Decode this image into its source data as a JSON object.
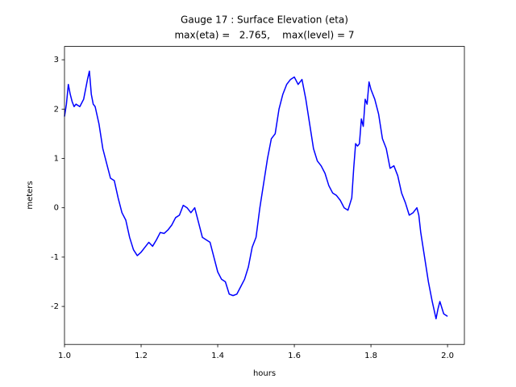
{
  "chart_data": {
    "type": "line",
    "title": "Gauge 17 : Surface Elevation (eta)",
    "subtitle": "max(eta) =   2.765,    max(level) = 7",
    "x_label": "hours",
    "y_label": "meters",
    "xlim": [
      1.0,
      2.044
    ],
    "ylim": [
      -2.77,
      3.27
    ],
    "xticks": [
      {
        "value": 1.0,
        "label": "1.0"
      },
      1.2,
      1.4,
      1.6,
      1.8,
      {
        "value": 2.0,
        "label": "2.0"
      }
    ],
    "yticks": [
      -2,
      -1,
      0,
      1,
      2,
      3
    ],
    "x": [
      1.0,
      1.005,
      1.01,
      1.015,
      1.02,
      1.025,
      1.03,
      1.04,
      1.05,
      1.06,
      1.065,
      1.07,
      1.075,
      1.08,
      1.09,
      1.1,
      1.11,
      1.12,
      1.13,
      1.14,
      1.15,
      1.16,
      1.17,
      1.18,
      1.19,
      1.2,
      1.21,
      1.22,
      1.23,
      1.24,
      1.25,
      1.26,
      1.27,
      1.28,
      1.29,
      1.3,
      1.31,
      1.32,
      1.33,
      1.34,
      1.35,
      1.36,
      1.37,
      1.38,
      1.39,
      1.4,
      1.41,
      1.42,
      1.43,
      1.44,
      1.45,
      1.46,
      1.47,
      1.48,
      1.49,
      1.5,
      1.51,
      1.52,
      1.53,
      1.54,
      1.55,
      1.56,
      1.57,
      1.58,
      1.59,
      1.6,
      1.61,
      1.62,
      1.63,
      1.64,
      1.65,
      1.66,
      1.67,
      1.68,
      1.69,
      1.7,
      1.71,
      1.72,
      1.73,
      1.74,
      1.75,
      1.755,
      1.76,
      1.765,
      1.77,
      1.775,
      1.78,
      1.785,
      1.79,
      1.795,
      1.8,
      1.81,
      1.82,
      1.83,
      1.84,
      1.85,
      1.86,
      1.87,
      1.88,
      1.89,
      1.9,
      1.91,
      1.92,
      1.925,
      1.93,
      1.94,
      1.95,
      1.96,
      1.97,
      1.975,
      1.98,
      1.99,
      2.0
    ],
    "series": [
      {
        "color": "#0000ff",
        "values": [
          1.85,
          2.1,
          2.5,
          2.3,
          2.15,
          2.05,
          2.1,
          2.05,
          2.2,
          2.6,
          2.77,
          2.3,
          2.1,
          2.05,
          1.7,
          1.2,
          0.9,
          0.6,
          0.55,
          0.2,
          -0.1,
          -0.25,
          -0.6,
          -0.85,
          -0.97,
          -0.9,
          -0.8,
          -0.7,
          -0.78,
          -0.65,
          -0.5,
          -0.52,
          -0.45,
          -0.35,
          -0.2,
          -0.15,
          0.05,
          0.0,
          -0.1,
          0.0,
          -0.3,
          -0.6,
          -0.65,
          -0.7,
          -1.0,
          -1.3,
          -1.45,
          -1.5,
          -1.75,
          -1.78,
          -1.75,
          -1.6,
          -1.45,
          -1.2,
          -0.8,
          -0.6,
          0.0,
          0.5,
          1.0,
          1.4,
          1.5,
          2.0,
          2.3,
          2.5,
          2.6,
          2.65,
          2.5,
          2.6,
          2.2,
          1.7,
          1.2,
          0.95,
          0.85,
          0.7,
          0.45,
          0.3,
          0.25,
          0.15,
          0.0,
          -0.05,
          0.2,
          0.8,
          1.3,
          1.25,
          1.3,
          1.8,
          1.65,
          2.2,
          2.1,
          2.55,
          2.4,
          2.2,
          1.9,
          1.4,
          1.2,
          0.8,
          0.85,
          0.65,
          0.3,
          0.1,
          -0.15,
          -0.1,
          0.0,
          -0.15,
          -0.5,
          -1.0,
          -1.5,
          -1.9,
          -2.25,
          -2.05,
          -1.9,
          -2.15,
          -2.2
        ]
      }
    ]
  }
}
